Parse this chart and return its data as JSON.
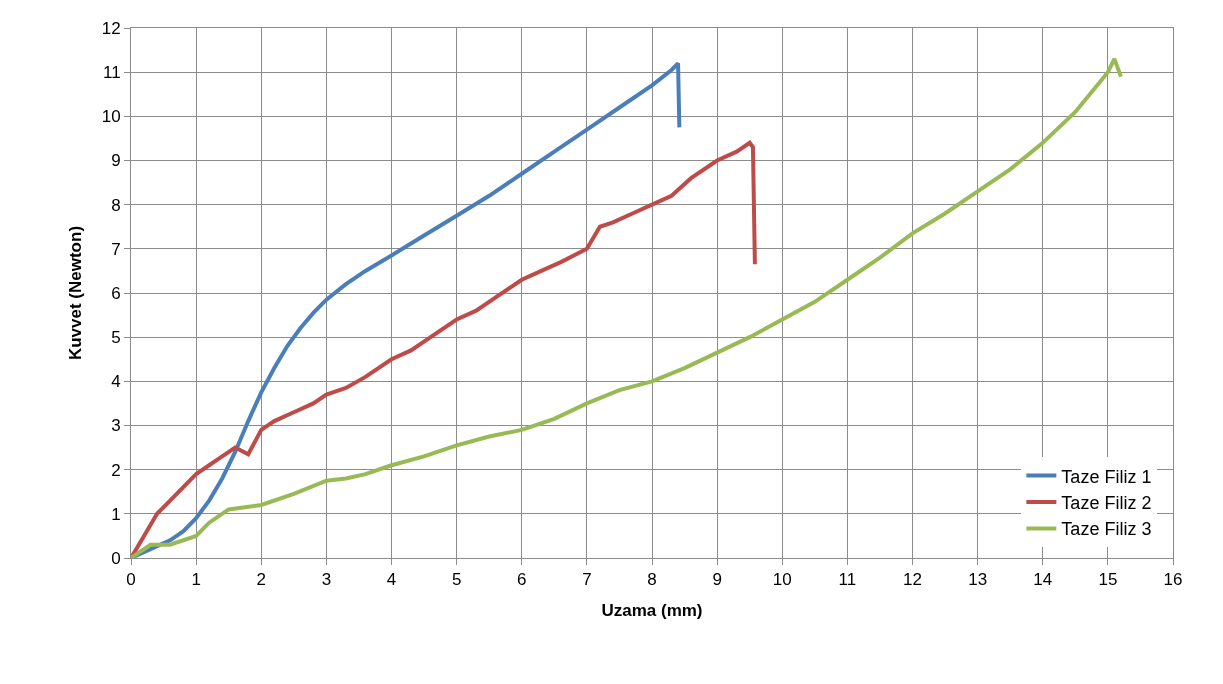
{
  "chart_data": {
    "type": "line",
    "xlabel": "Uzama (mm)",
    "ylabel": "Kuvvet (Newton)",
    "xlim": [
      0,
      16
    ],
    "xticks": [
      0,
      1,
      2,
      3,
      4,
      5,
      6,
      7,
      8,
      9,
      10,
      11,
      12,
      13,
      14,
      15,
      16
    ],
    "ylim": [
      0,
      12
    ],
    "yticks": [
      0,
      1,
      2,
      3,
      4,
      5,
      6,
      7,
      8,
      9,
      10,
      11,
      12
    ],
    "grid": true,
    "legend": "bottom right",
    "line_style": "solid",
    "marker": "none",
    "series": [
      {
        "name": "Taze Filiz 1",
        "color": "#4a7ebb",
        "x": [
          0,
          0.3,
          0.6,
          0.8,
          1,
          1.2,
          1.4,
          1.6,
          1.8,
          2,
          2.2,
          2.4,
          2.6,
          2.8,
          3,
          3.3,
          3.6,
          4,
          4.5,
          5,
          5.5,
          6,
          6.5,
          7,
          7.5,
          8,
          8.3,
          8.4,
          8.42
        ],
        "values": [
          0,
          0.2,
          0.4,
          0.6,
          0.9,
          1.3,
          1.8,
          2.4,
          3.1,
          3.75,
          4.3,
          4.8,
          5.2,
          5.55,
          5.85,
          6.2,
          6.5,
          6.85,
          7.3,
          7.75,
          8.2,
          8.7,
          9.2,
          9.7,
          10.2,
          10.7,
          11.05,
          11.2,
          9.75
        ]
      },
      {
        "name": "Taze Filiz 2",
        "color": "#be4b48",
        "x": [
          0,
          0.2,
          0.4,
          0.6,
          0.8,
          1,
          1.2,
          1.4,
          1.6,
          1.8,
          2,
          2.2,
          2.5,
          2.8,
          3,
          3.3,
          3.6,
          4,
          4.3,
          4.6,
          5,
          5.3,
          5.6,
          6,
          6.3,
          6.6,
          7,
          7.2,
          7.4,
          7.7,
          8,
          8.3,
          8.6,
          9,
          9.3,
          9.5,
          9.55,
          9.58
        ],
        "values": [
          0,
          0.5,
          1.0,
          1.3,
          1.6,
          1.9,
          2.1,
          2.3,
          2.5,
          2.35,
          2.9,
          3.1,
          3.3,
          3.5,
          3.7,
          3.85,
          4.1,
          4.5,
          4.7,
          5.0,
          5.4,
          5.6,
          5.9,
          6.3,
          6.5,
          6.7,
          7.0,
          7.5,
          7.6,
          7.8,
          8.0,
          8.2,
          8.6,
          9.0,
          9.2,
          9.4,
          9.3,
          6.65
        ]
      },
      {
        "name": "Taze Filiz 3",
        "color": "#98b954",
        "x": [
          0,
          0.3,
          0.6,
          1,
          1.2,
          1.5,
          2,
          2.5,
          3,
          3.3,
          3.6,
          4,
          4.5,
          5,
          5.5,
          6,
          6.5,
          7,
          7.5,
          8,
          8.5,
          9,
          9.5,
          10,
          10.5,
          11,
          11.5,
          12,
          12.5,
          13,
          13.5,
          14,
          14.5,
          15,
          15.1,
          15.2
        ],
        "values": [
          0,
          0.3,
          0.3,
          0.5,
          0.8,
          1.1,
          1.2,
          1.45,
          1.75,
          1.8,
          1.9,
          2.1,
          2.3,
          2.55,
          2.75,
          2.9,
          3.15,
          3.5,
          3.8,
          4.0,
          4.3,
          4.65,
          5.0,
          5.4,
          5.8,
          6.3,
          6.8,
          7.35,
          7.8,
          8.3,
          8.8,
          9.4,
          10.1,
          11.0,
          11.3,
          10.9
        ]
      }
    ]
  }
}
